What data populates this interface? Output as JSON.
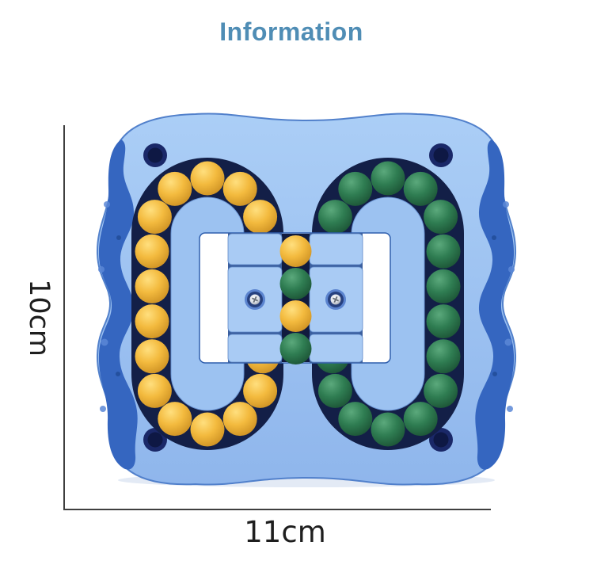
{
  "page": {
    "title": "Information",
    "title_color": "#4f8db5",
    "background": "#ffffff"
  },
  "dimensions": {
    "height_label": "10cm",
    "width_label": "11cm",
    "line_color": "#3f3f3f",
    "label_color": "#1e1e1e"
  },
  "product": {
    "colors": {
      "body": "#8fb6ec",
      "body_light": "#abcef6",
      "body_edge": "#5180cb",
      "shadow": "#ccd9ec",
      "grip": "#3566c0",
      "grip_dark": "#24509e",
      "grip_nub": "#5b87d6",
      "hole": "#1a2868",
      "hole_dark": "#0e1844",
      "track": "#131f47",
      "channel": "#111b3e",
      "island": "#9cc2f1",
      "island_edge": "#6a94d4",
      "frame": "#ffffff",
      "frame_edge": "#2f5fae",
      "plate": "#a9cbf4",
      "plate_edge": "#5e88c8",
      "plate_backing": "#3b5f9e",
      "bead_yellow": "#f3ba3e",
      "bead_yellow_light": "#ffdf7e",
      "bead_yellow_dark": "#c4871c",
      "bead_green": "#2f7d52",
      "bead_green_light": "#5ba97c",
      "bead_green_dark": "#17492e",
      "screw_ring": "#5b84cf",
      "screw_inner": "#26407e",
      "screw_metal": "#dfe3e9",
      "screw_metal_dark": "#8b919c"
    },
    "left_ring": {
      "bead_color": "yellow",
      "bead_count": 18
    },
    "right_ring": {
      "bead_color": "green",
      "bead_count": 18
    },
    "center_column_beads": [
      "yellow",
      "green",
      "yellow",
      "green"
    ]
  }
}
